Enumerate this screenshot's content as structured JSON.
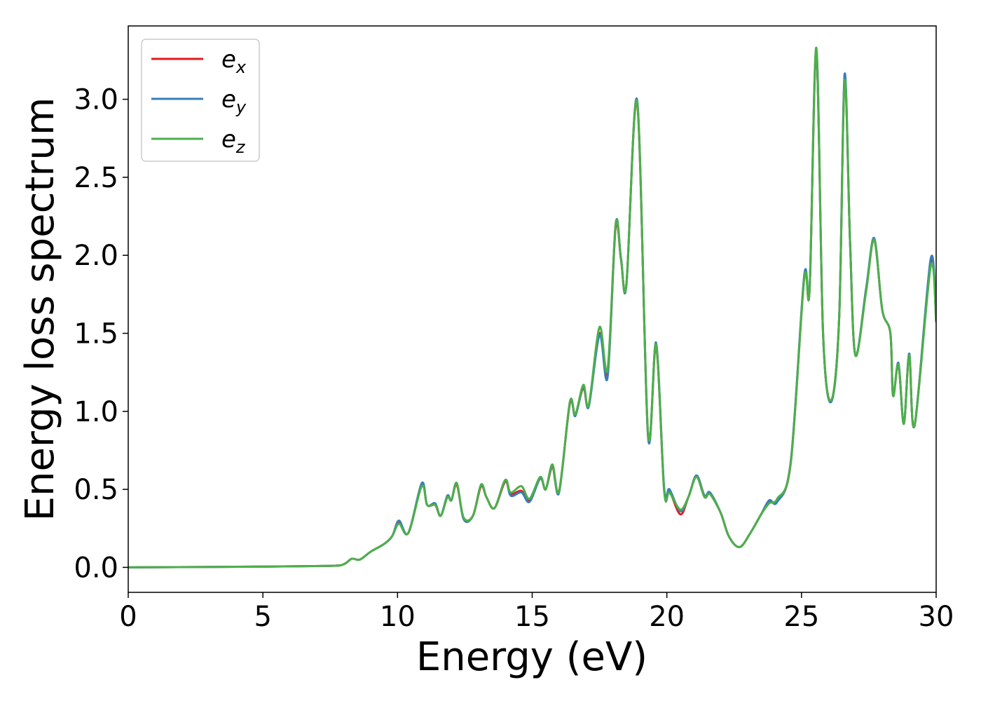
{
  "chart_data": {
    "type": "line",
    "xlabel": "Energy (eV)",
    "ylabel": "Energy loss spectrum",
    "xlim": [
      0,
      30
    ],
    "ylim": [
      -0.16,
      3.47
    ],
    "xticks": [
      "0",
      "5",
      "10",
      "15",
      "20",
      "25",
      "30"
    ],
    "yticks": [
      "0.0",
      "0.5",
      "1.0",
      "1.5",
      "2.0",
      "2.5",
      "3.0"
    ],
    "grid": false,
    "legend_position": "top-left",
    "series": [
      {
        "name": "e",
        "subscript": "x",
        "color": "#e41a1c",
        "points": [
          [
            0,
            0
          ],
          [
            5,
            0.005
          ],
          [
            7.5,
            0.01
          ],
          [
            8,
            0.02
          ],
          [
            8.3,
            0.055
          ],
          [
            8.6,
            0.05
          ],
          [
            9.0,
            0.1
          ],
          [
            9.5,
            0.15
          ],
          [
            9.8,
            0.2
          ],
          [
            10.05,
            0.29
          ],
          [
            10.4,
            0.22
          ],
          [
            10.9,
            0.53
          ],
          [
            11.1,
            0.4
          ],
          [
            11.4,
            0.4
          ],
          [
            11.6,
            0.33
          ],
          [
            11.85,
            0.45
          ],
          [
            12.0,
            0.43
          ],
          [
            12.2,
            0.53
          ],
          [
            12.45,
            0.32
          ],
          [
            12.8,
            0.33
          ],
          [
            13.1,
            0.52
          ],
          [
            13.3,
            0.45
          ],
          [
            13.6,
            0.38
          ],
          [
            14.0,
            0.55
          ],
          [
            14.2,
            0.47
          ],
          [
            14.6,
            0.49
          ],
          [
            14.9,
            0.43
          ],
          [
            15.3,
            0.57
          ],
          [
            15.5,
            0.5
          ],
          [
            15.75,
            0.64
          ],
          [
            16.0,
            0.49
          ],
          [
            16.4,
            1.05
          ],
          [
            16.6,
            0.98
          ],
          [
            16.9,
            1.15
          ],
          [
            17.1,
            1.04
          ],
          [
            17.5,
            1.5
          ],
          [
            17.8,
            1.24
          ],
          [
            18.1,
            2.18
          ],
          [
            18.3,
            1.97
          ],
          [
            18.5,
            1.82
          ],
          [
            18.9,
            2.97
          ],
          [
            19.3,
            0.85
          ],
          [
            19.6,
            1.42
          ],
          [
            19.9,
            0.5
          ],
          [
            20.1,
            0.49
          ],
          [
            20.5,
            0.34
          ],
          [
            20.8,
            0.45
          ],
          [
            21.1,
            0.58
          ],
          [
            21.4,
            0.45
          ],
          [
            21.6,
            0.47
          ],
          [
            22.0,
            0.35
          ],
          [
            22.3,
            0.2
          ],
          [
            22.7,
            0.13
          ],
          [
            23.1,
            0.22
          ],
          [
            23.5,
            0.34
          ],
          [
            23.8,
            0.42
          ],
          [
            24.1,
            0.43
          ],
          [
            24.6,
            0.67
          ],
          [
            25.1,
            1.86
          ],
          [
            25.3,
            1.78
          ],
          [
            25.55,
            3.3
          ],
          [
            25.8,
            1.5
          ],
          [
            26.1,
            1.07
          ],
          [
            26.4,
            1.6
          ],
          [
            26.6,
            3.13
          ],
          [
            26.8,
            2.1
          ],
          [
            27.0,
            1.36
          ],
          [
            27.4,
            1.78
          ],
          [
            27.7,
            2.1
          ],
          [
            28.0,
            1.65
          ],
          [
            28.3,
            1.5
          ],
          [
            28.4,
            1.1
          ],
          [
            28.6,
            1.3
          ],
          [
            28.8,
            0.92
          ],
          [
            29.0,
            1.36
          ],
          [
            29.2,
            0.91
          ],
          [
            29.8,
            1.96
          ],
          [
            30,
            1.58
          ]
        ]
      },
      {
        "name": "e",
        "subscript": "y",
        "color": "#377eb8",
        "points": [
          [
            0,
            0
          ],
          [
            5,
            0.005
          ],
          [
            7.5,
            0.01
          ],
          [
            8,
            0.02
          ],
          [
            8.3,
            0.055
          ],
          [
            8.6,
            0.05
          ],
          [
            9.0,
            0.1
          ],
          [
            9.5,
            0.15
          ],
          [
            9.8,
            0.2
          ],
          [
            10.05,
            0.3
          ],
          [
            10.4,
            0.22
          ],
          [
            10.9,
            0.54
          ],
          [
            11.1,
            0.4
          ],
          [
            11.4,
            0.41
          ],
          [
            11.6,
            0.33
          ],
          [
            11.85,
            0.46
          ],
          [
            12.0,
            0.43
          ],
          [
            12.2,
            0.54
          ],
          [
            12.45,
            0.31
          ],
          [
            12.8,
            0.33
          ],
          [
            13.1,
            0.53
          ],
          [
            13.3,
            0.45
          ],
          [
            13.6,
            0.38
          ],
          [
            14.0,
            0.56
          ],
          [
            14.2,
            0.46
          ],
          [
            14.6,
            0.48
          ],
          [
            14.9,
            0.42
          ],
          [
            15.3,
            0.57
          ],
          [
            15.5,
            0.5
          ],
          [
            15.75,
            0.65
          ],
          [
            16.0,
            0.48
          ],
          [
            16.4,
            1.06
          ],
          [
            16.6,
            0.97
          ],
          [
            16.9,
            1.16
          ],
          [
            17.1,
            1.03
          ],
          [
            17.5,
            1.49
          ],
          [
            17.8,
            1.22
          ],
          [
            18.1,
            2.2
          ],
          [
            18.3,
            1.98
          ],
          [
            18.5,
            1.81
          ],
          [
            18.9,
            2.99
          ],
          [
            19.3,
            0.84
          ],
          [
            19.6,
            1.44
          ],
          [
            19.9,
            0.51
          ],
          [
            20.1,
            0.5
          ],
          [
            20.5,
            0.36
          ],
          [
            20.8,
            0.45
          ],
          [
            21.1,
            0.59
          ],
          [
            21.4,
            0.46
          ],
          [
            21.6,
            0.48
          ],
          [
            22.0,
            0.35
          ],
          [
            22.3,
            0.2
          ],
          [
            22.7,
            0.13
          ],
          [
            23.1,
            0.22
          ],
          [
            23.5,
            0.34
          ],
          [
            23.8,
            0.43
          ],
          [
            24.1,
            0.42
          ],
          [
            24.6,
            0.68
          ],
          [
            25.1,
            1.87
          ],
          [
            25.3,
            1.79
          ],
          [
            25.55,
            3.31
          ],
          [
            25.8,
            1.5
          ],
          [
            26.1,
            1.06
          ],
          [
            26.4,
            1.6
          ],
          [
            26.6,
            3.16
          ],
          [
            26.8,
            2.1
          ],
          [
            27.0,
            1.36
          ],
          [
            27.4,
            1.79
          ],
          [
            27.7,
            2.11
          ],
          [
            28.0,
            1.65
          ],
          [
            28.3,
            1.5
          ],
          [
            28.4,
            1.1
          ],
          [
            28.6,
            1.31
          ],
          [
            28.8,
            0.92
          ],
          [
            29.0,
            1.37
          ],
          [
            29.2,
            0.91
          ],
          [
            29.8,
            1.98
          ],
          [
            30,
            1.58
          ]
        ]
      },
      {
        "name": "e",
        "subscript": "z",
        "color": "#4daf4a",
        "points": [
          [
            0,
            0
          ],
          [
            5,
            0.005
          ],
          [
            7.5,
            0.01
          ],
          [
            8,
            0.02
          ],
          [
            8.3,
            0.055
          ],
          [
            8.6,
            0.05
          ],
          [
            9.0,
            0.1
          ],
          [
            9.5,
            0.15
          ],
          [
            9.8,
            0.2
          ],
          [
            10.05,
            0.28
          ],
          [
            10.4,
            0.22
          ],
          [
            10.9,
            0.52
          ],
          [
            11.1,
            0.4
          ],
          [
            11.4,
            0.4
          ],
          [
            11.6,
            0.33
          ],
          [
            11.85,
            0.45
          ],
          [
            12.0,
            0.43
          ],
          [
            12.2,
            0.54
          ],
          [
            12.45,
            0.32
          ],
          [
            12.8,
            0.33
          ],
          [
            13.1,
            0.53
          ],
          [
            13.3,
            0.45
          ],
          [
            13.6,
            0.38
          ],
          [
            14.0,
            0.56
          ],
          [
            14.2,
            0.48
          ],
          [
            14.6,
            0.52
          ],
          [
            14.9,
            0.44
          ],
          [
            15.3,
            0.58
          ],
          [
            15.5,
            0.5
          ],
          [
            15.75,
            0.66
          ],
          [
            16.0,
            0.49
          ],
          [
            16.4,
            1.06
          ],
          [
            16.6,
            0.98
          ],
          [
            16.9,
            1.17
          ],
          [
            17.1,
            1.04
          ],
          [
            17.5,
            1.54
          ],
          [
            17.8,
            1.27
          ],
          [
            18.1,
            2.2
          ],
          [
            18.3,
            1.97
          ],
          [
            18.5,
            1.82
          ],
          [
            18.9,
            2.98
          ],
          [
            19.3,
            0.86
          ],
          [
            19.6,
            1.43
          ],
          [
            19.9,
            0.49
          ],
          [
            20.1,
            0.48
          ],
          [
            20.5,
            0.37
          ],
          [
            20.8,
            0.45
          ],
          [
            21.1,
            0.58
          ],
          [
            21.4,
            0.45
          ],
          [
            21.6,
            0.47
          ],
          [
            22.0,
            0.35
          ],
          [
            22.3,
            0.2
          ],
          [
            22.7,
            0.13
          ],
          [
            23.1,
            0.22
          ],
          [
            23.5,
            0.34
          ],
          [
            23.8,
            0.41
          ],
          [
            24.1,
            0.44
          ],
          [
            24.6,
            0.67
          ],
          [
            25.1,
            1.85
          ],
          [
            25.3,
            1.78
          ],
          [
            25.55,
            3.33
          ],
          [
            25.8,
            1.5
          ],
          [
            26.1,
            1.07
          ],
          [
            26.4,
            1.6
          ],
          [
            26.6,
            3.12
          ],
          [
            26.8,
            2.1
          ],
          [
            27.0,
            1.36
          ],
          [
            27.4,
            1.77
          ],
          [
            27.7,
            2.1
          ],
          [
            28.0,
            1.65
          ],
          [
            28.3,
            1.5
          ],
          [
            28.4,
            1.1
          ],
          [
            28.6,
            1.3
          ],
          [
            28.8,
            0.92
          ],
          [
            29.0,
            1.36
          ],
          [
            29.2,
            0.91
          ],
          [
            29.8,
            1.93
          ],
          [
            30,
            1.57
          ]
        ]
      }
    ]
  }
}
